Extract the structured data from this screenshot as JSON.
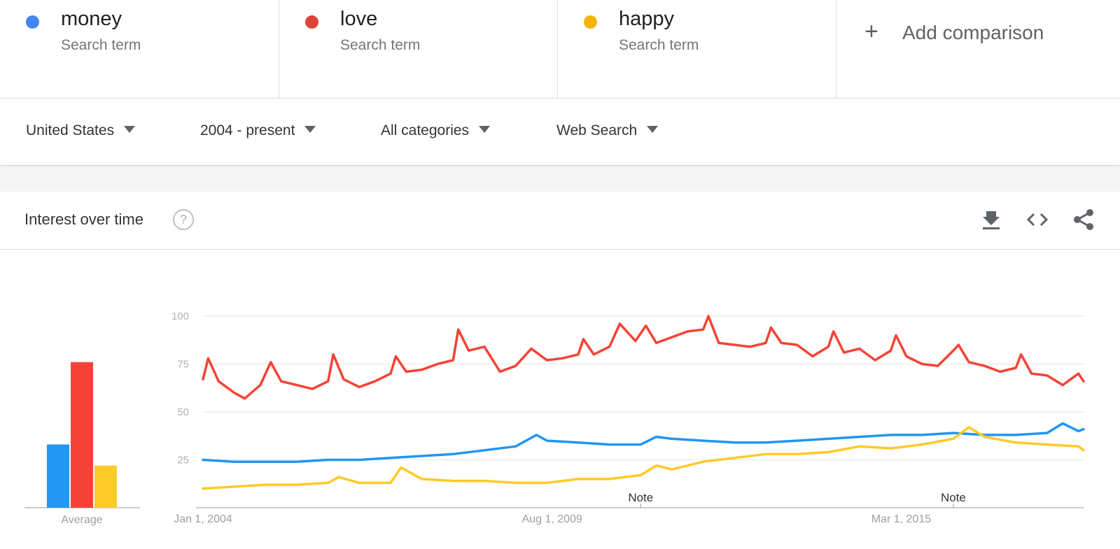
{
  "terms": [
    {
      "name": "money",
      "type": "Search term",
      "color": "#4285F4"
    },
    {
      "name": "love",
      "type": "Search term",
      "color": "#DB4437"
    },
    {
      "name": "happy",
      "type": "Search term",
      "color": "#F4B400"
    }
  ],
  "add_comparison": {
    "icon": "plus-icon",
    "label": "Add comparison"
  },
  "filters": {
    "region": "United States",
    "time": "2004 - present",
    "category": "All categories",
    "property": "Web Search"
  },
  "card": {
    "title": "Interest over time",
    "help_icon": "question-icon",
    "actions": [
      "download-icon",
      "embed-icon",
      "share-icon"
    ]
  },
  "chart_data": {
    "type": "line",
    "average_label": "Average",
    "averages": [
      {
        "term": "money",
        "value": 33,
        "color": "#2196F3"
      },
      {
        "term": "love",
        "value": 76,
        "color": "#F44336"
      },
      {
        "term": "happy",
        "value": 22,
        "color": "#FFCA28"
      }
    ],
    "ylim": [
      0,
      100
    ],
    "yticks": [
      25,
      50,
      75,
      100
    ],
    "xlim": [
      "2004-01",
      "2018-02"
    ],
    "xticks": [
      {
        "date": "2004-01",
        "label": "Jan 1, 2004"
      },
      {
        "date": "2009-08",
        "label": "Aug 1, 2009"
      },
      {
        "date": "2015-03",
        "label": "Mar 1, 2015"
      }
    ],
    "notes": [
      {
        "date": "2011-01",
        "label": "Note"
      },
      {
        "date": "2016-01",
        "label": "Note"
      }
    ],
    "grid": true,
    "series": [
      {
        "name": "money",
        "color": "#2196F3",
        "points": [
          [
            "2004-01",
            25
          ],
          [
            "2004-07",
            24
          ],
          [
            "2005-01",
            24
          ],
          [
            "2005-07",
            24
          ],
          [
            "2006-01",
            25
          ],
          [
            "2006-07",
            25
          ],
          [
            "2007-01",
            26
          ],
          [
            "2007-07",
            27
          ],
          [
            "2008-01",
            28
          ],
          [
            "2008-07",
            30
          ],
          [
            "2009-01",
            32
          ],
          [
            "2009-05",
            38
          ],
          [
            "2009-07",
            35
          ],
          [
            "2010-01",
            34
          ],
          [
            "2010-07",
            33
          ],
          [
            "2011-01",
            33
          ],
          [
            "2011-04",
            37
          ],
          [
            "2011-07",
            36
          ],
          [
            "2012-01",
            35
          ],
          [
            "2012-07",
            34
          ],
          [
            "2013-01",
            34
          ],
          [
            "2013-07",
            35
          ],
          [
            "2014-01",
            36
          ],
          [
            "2014-07",
            37
          ],
          [
            "2015-01",
            38
          ],
          [
            "2015-07",
            38
          ],
          [
            "2016-01",
            39
          ],
          [
            "2016-07",
            38
          ],
          [
            "2017-01",
            38
          ],
          [
            "2017-07",
            39
          ],
          [
            "2017-10",
            44
          ],
          [
            "2018-01",
            40
          ],
          [
            "2018-02",
            41
          ]
        ]
      },
      {
        "name": "love",
        "color": "#F44336",
        "points": [
          [
            "2004-01",
            67
          ],
          [
            "2004-02",
            78
          ],
          [
            "2004-04",
            66
          ],
          [
            "2004-07",
            60
          ],
          [
            "2004-09",
            57
          ],
          [
            "2004-12",
            64
          ],
          [
            "2005-02",
            76
          ],
          [
            "2005-04",
            66
          ],
          [
            "2005-07",
            64
          ],
          [
            "2005-10",
            62
          ],
          [
            "2006-01",
            66
          ],
          [
            "2006-02",
            80
          ],
          [
            "2006-04",
            67
          ],
          [
            "2006-07",
            63
          ],
          [
            "2006-10",
            66
          ],
          [
            "2007-01",
            70
          ],
          [
            "2007-02",
            79
          ],
          [
            "2007-04",
            71
          ],
          [
            "2007-07",
            72
          ],
          [
            "2007-10",
            75
          ],
          [
            "2008-01",
            77
          ],
          [
            "2008-02",
            93
          ],
          [
            "2008-04",
            82
          ],
          [
            "2008-07",
            84
          ],
          [
            "2008-10",
            71
          ],
          [
            "2009-01",
            74
          ],
          [
            "2009-04",
            83
          ],
          [
            "2009-07",
            77
          ],
          [
            "2009-10",
            78
          ],
          [
            "2010-01",
            80
          ],
          [
            "2010-02",
            88
          ],
          [
            "2010-04",
            80
          ],
          [
            "2010-07",
            84
          ],
          [
            "2010-09",
            96
          ],
          [
            "2010-12",
            87
          ],
          [
            "2011-02",
            95
          ],
          [
            "2011-04",
            86
          ],
          [
            "2011-07",
            89
          ],
          [
            "2011-10",
            92
          ],
          [
            "2012-01",
            93
          ],
          [
            "2012-02",
            100
          ],
          [
            "2012-04",
            86
          ],
          [
            "2012-07",
            85
          ],
          [
            "2012-10",
            84
          ],
          [
            "2013-01",
            86
          ],
          [
            "2013-02",
            94
          ],
          [
            "2013-04",
            86
          ],
          [
            "2013-07",
            85
          ],
          [
            "2013-10",
            79
          ],
          [
            "2014-01",
            84
          ],
          [
            "2014-02",
            92
          ],
          [
            "2014-04",
            81
          ],
          [
            "2014-07",
            83
          ],
          [
            "2014-10",
            77
          ],
          [
            "2015-01",
            82
          ],
          [
            "2015-02",
            90
          ],
          [
            "2015-04",
            79
          ],
          [
            "2015-07",
            75
          ],
          [
            "2015-10",
            74
          ],
          [
            "2016-01",
            82
          ],
          [
            "2016-02",
            85
          ],
          [
            "2016-04",
            76
          ],
          [
            "2016-07",
            74
          ],
          [
            "2016-10",
            71
          ],
          [
            "2017-01",
            73
          ],
          [
            "2017-02",
            80
          ],
          [
            "2017-04",
            70
          ],
          [
            "2017-07",
            69
          ],
          [
            "2017-10",
            64
          ],
          [
            "2018-01",
            70
          ],
          [
            "2018-02",
            66
          ]
        ]
      },
      {
        "name": "happy",
        "color": "#FFCA28",
        "points": [
          [
            "2004-01",
            10
          ],
          [
            "2004-07",
            11
          ],
          [
            "2005-01",
            12
          ],
          [
            "2005-07",
            12
          ],
          [
            "2006-01",
            13
          ],
          [
            "2006-03",
            16
          ],
          [
            "2006-07",
            13
          ],
          [
            "2007-01",
            13
          ],
          [
            "2007-03",
            21
          ],
          [
            "2007-07",
            15
          ],
          [
            "2008-01",
            14
          ],
          [
            "2008-07",
            14
          ],
          [
            "2009-01",
            13
          ],
          [
            "2009-07",
            13
          ],
          [
            "2010-01",
            15
          ],
          [
            "2010-07",
            15
          ],
          [
            "2011-01",
            17
          ],
          [
            "2011-04",
            22
          ],
          [
            "2011-07",
            20
          ],
          [
            "2012-01",
            24
          ],
          [
            "2012-07",
            26
          ],
          [
            "2013-01",
            28
          ],
          [
            "2013-07",
            28
          ],
          [
            "2014-01",
            29
          ],
          [
            "2014-07",
            32
          ],
          [
            "2015-01",
            31
          ],
          [
            "2015-07",
            33
          ],
          [
            "2016-01",
            36
          ],
          [
            "2016-04",
            42
          ],
          [
            "2016-07",
            37
          ],
          [
            "2017-01",
            34
          ],
          [
            "2017-07",
            33
          ],
          [
            "2018-01",
            32
          ],
          [
            "2018-02",
            30
          ]
        ]
      }
    ]
  }
}
